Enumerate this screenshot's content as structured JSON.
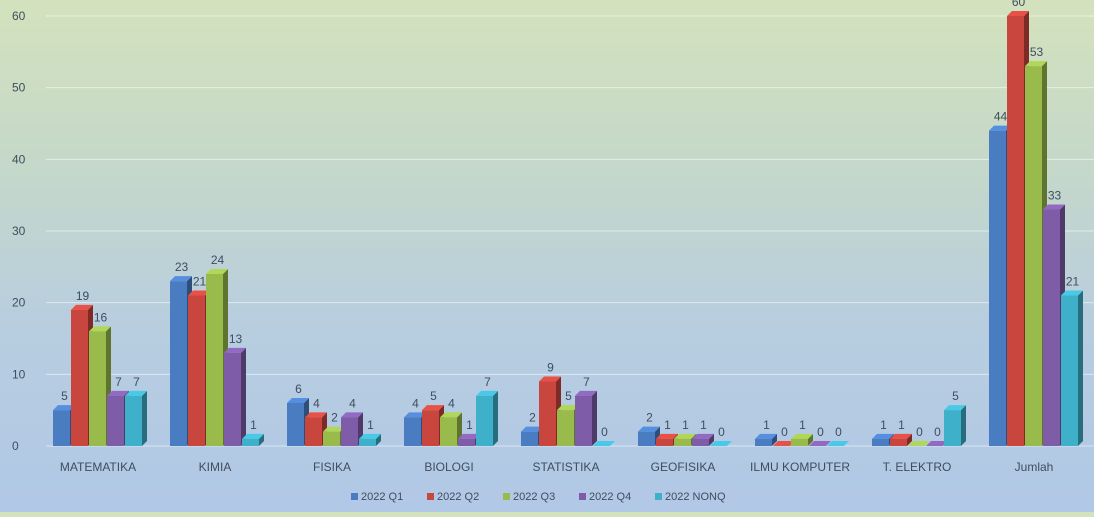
{
  "chart_data": {
    "type": "bar",
    "categories": [
      "MATEMATIKA",
      "KIMIA",
      "FISIKA",
      "BIOLOGI",
      "STATISTIKA",
      "GEOFISIKA",
      "ILMU KOMPUTER",
      "T. ELEKTRO",
      "Jumlah"
    ],
    "series": [
      {
        "name": "2022 Q1",
        "values": [
          5,
          23,
          6,
          4,
          2,
          2,
          1,
          1,
          44
        ],
        "color": "#4a7cc2"
      },
      {
        "name": "2022 Q2",
        "values": [
          19,
          21,
          4,
          5,
          9,
          1,
          0,
          1,
          60
        ],
        "color": "#c9463f"
      },
      {
        "name": "2022 Q3",
        "values": [
          16,
          24,
          2,
          4,
          5,
          1,
          1,
          0,
          53
        ],
        "color": "#99bb4c"
      },
      {
        "name": "2022 Q4",
        "values": [
          7,
          13,
          4,
          1,
          7,
          1,
          0,
          0,
          33
        ],
        "color": "#7f5ca8"
      },
      {
        "name": "2022 NONQ",
        "values": [
          7,
          1,
          1,
          7,
          0,
          0,
          0,
          5,
          21
        ],
        "color": "#3fb0c9"
      }
    ],
    "yticks": [
      0,
      10,
      20,
      30,
      40,
      50,
      60
    ],
    "ylim": [
      0,
      60
    ],
    "grid": true,
    "legend": "bottom",
    "title": "",
    "xlabel": "",
    "ylabel": ""
  }
}
